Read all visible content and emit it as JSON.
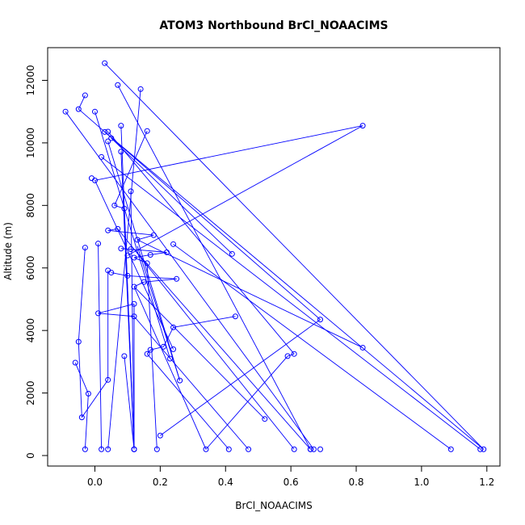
{
  "chart_data": {
    "type": "line",
    "title": "ATOM3 Northbound BrCl_NOAACIMS",
    "xlabel": "BrCl_NOAACIMS",
    "ylabel": "Altitude (m)",
    "xlim": [
      -0.1,
      1.2
    ],
    "ylim": [
      0,
      12600
    ],
    "x_ticks": [
      "0.0",
      "0.2",
      "0.4",
      "0.6",
      "0.8",
      "1.0",
      "1.2"
    ],
    "y_ticks": [
      "0",
      "2000",
      "4000",
      "6000",
      "8000",
      "10000",
      "12000"
    ],
    "grid": false,
    "series_color": "#0000ff",
    "points": [
      {
        "x": 0.03,
        "y": 12550
      },
      {
        "x": 1.19,
        "y": 200
      },
      {
        "x": 0.07,
        "y": 11850
      },
      {
        "x": 0.66,
        "y": 200
      },
      {
        "x": 0.14,
        "y": 11720
      },
      {
        "x": 0.04,
        "y": 200
      },
      {
        "x": -0.03,
        "y": 11520
      },
      {
        "x": -0.05,
        "y": 11080
      },
      {
        "x": 0.69,
        "y": 4350
      },
      {
        "x": -0.09,
        "y": 11000
      },
      {
        "x": 0.23,
        "y": 3100
      },
      {
        "x": 0.0,
        "y": 11000
      },
      {
        "x": 0.67,
        "y": 200
      },
      {
        "x": 0.82,
        "y": 10550
      },
      {
        "x": 0.1,
        "y": 6400
      },
      {
        "x": 0.08,
        "y": 10550
      },
      {
        "x": 0.12,
        "y": 200
      },
      {
        "x": 0.16,
        "y": 10380
      },
      {
        "x": 0.04,
        "y": 10360
      },
      {
        "x": 0.61,
        "y": 3250
      },
      {
        "x": 0.03,
        "y": 10350
      },
      {
        "x": 0.05,
        "y": 10150
      },
      {
        "x": 0.04,
        "y": 10050
      },
      {
        "x": 0.08,
        "y": 9720
      },
      {
        "x": 0.42,
        "y": 6450
      },
      {
        "x": 0.02,
        "y": 9550
      },
      {
        "x": 0.26,
        "y": 2400
      },
      {
        "x": -0.01,
        "y": 8870
      },
      {
        "x": 0.0,
        "y": 8800
      },
      {
        "x": 0.24,
        "y": 3400
      },
      {
        "x": 0.11,
        "y": 8450
      },
      {
        "x": 0.06,
        "y": 8000
      },
      {
        "x": 0.12,
        "y": 200
      },
      {
        "x": 0.09,
        "y": 7900
      },
      {
        "x": 0.07,
        "y": 7250
      },
      {
        "x": 0.04,
        "y": 7200
      },
      {
        "x": 0.18,
        "y": 7050
      },
      {
        "x": 0.13,
        "y": 6900
      },
      {
        "x": 0.01,
        "y": 6780
      },
      {
        "x": 0.24,
        "y": 6760
      },
      {
        "x": -0.03,
        "y": 6650
      },
      {
        "x": -0.05,
        "y": 3640
      },
      {
        "x": 0.08,
        "y": 6620
      },
      {
        "x": 0.11,
        "y": 6600
      },
      {
        "x": 0.22,
        "y": 6500
      },
      {
        "x": 0.17,
        "y": 6420
      },
      {
        "x": 0.12,
        "y": 6330
      },
      {
        "x": 0.16,
        "y": 6150
      },
      {
        "x": 0.04,
        "y": 5920
      },
      {
        "x": 0.05,
        "y": 5850
      },
      {
        "x": 0.1,
        "y": 5750
      },
      {
        "x": 0.25,
        "y": 5650
      },
      {
        "x": 0.15,
        "y": 5550
      },
      {
        "x": 0.12,
        "y": 5400
      },
      {
        "x": 0.12,
        "y": 4850
      },
      {
        "x": 0.01,
        "y": 4550
      },
      {
        "x": 0.12,
        "y": 4450
      },
      {
        "x": 0.43,
        "y": 4450
      },
      {
        "x": 0.24,
        "y": 4100
      },
      {
        "x": 0.82,
        "y": 3450
      },
      {
        "x": 0.21,
        "y": 3480
      },
      {
        "x": 0.17,
        "y": 3380
      },
      {
        "x": 0.16,
        "y": 3250
      },
      {
        "x": 0.59,
        "y": 3180
      },
      {
        "x": 0.09,
        "y": 3180
      },
      {
        "x": -0.06,
        "y": 2970
      },
      {
        "x": 0.04,
        "y": 2420
      },
      {
        "x": -0.02,
        "y": 1980
      },
      {
        "x": -0.04,
        "y": 1220
      },
      {
        "x": 0.52,
        "y": 1170
      },
      {
        "x": 0.2,
        "y": 640
      },
      {
        "x": -0.03,
        "y": 200
      },
      {
        "x": 0.02,
        "y": 200
      },
      {
        "x": 0.19,
        "y": 200
      },
      {
        "x": 0.34,
        "y": 200
      },
      {
        "x": 0.41,
        "y": 200
      },
      {
        "x": 0.47,
        "y": 200
      },
      {
        "x": 1.09,
        "y": 200
      },
      {
        "x": 1.18,
        "y": 200
      },
      {
        "x": 0.66,
        "y": 200
      },
      {
        "x": 0.12,
        "y": 200
      },
      {
        "x": 0.61,
        "y": 200
      },
      {
        "x": 0.69,
        "y": 200
      }
    ],
    "lines": [
      [
        [
          0.03,
          12550
        ],
        [
          1.19,
          200
        ]
      ],
      [
        [
          0.07,
          11850
        ],
        [
          0.66,
          200
        ]
      ],
      [
        [
          0.14,
          11720
        ],
        [
          0.04,
          200
        ]
      ],
      [
        [
          -0.03,
          11520
        ],
        [
          -0.05,
          11080
        ]
      ],
      [
        [
          -0.05,
          11080
        ],
        [
          0.69,
          4350
        ]
      ],
      [
        [
          0.0,
          11000
        ],
        [
          0.23,
          3100
        ]
      ],
      [
        [
          -0.09,
          11000
        ],
        [
          0.67,
          200
        ]
      ],
      [
        [
          0.08,
          10550
        ],
        [
          0.12,
          200
        ]
      ],
      [
        [
          0.82,
          10550
        ],
        [
          0.1,
          6400
        ]
      ],
      [
        [
          0.82,
          10550
        ],
        [
          0.0,
          8800
        ]
      ],
      [
        [
          0.16,
          10380
        ],
        [
          0.06,
          8000
        ]
      ],
      [
        [
          0.04,
          10360
        ],
        [
          0.61,
          3250
        ]
      ],
      [
        [
          0.03,
          10350
        ],
        [
          1.19,
          200
        ]
      ],
      [
        [
          0.05,
          10150
        ],
        [
          0.42,
          6450
        ]
      ],
      [
        [
          0.04,
          10050
        ],
        [
          0.26,
          2400
        ]
      ],
      [
        [
          0.08,
          9720
        ],
        [
          0.12,
          200
        ]
      ],
      [
        [
          0.02,
          9550
        ],
        [
          1.18,
          200
        ]
      ],
      [
        [
          0.0,
          8800
        ],
        [
          0.24,
          3400
        ]
      ],
      [
        [
          0.11,
          8450
        ],
        [
          0.12,
          200
        ]
      ],
      [
        [
          0.06,
          8000
        ],
        [
          0.09,
          7900
        ]
      ],
      [
        [
          0.09,
          7900
        ],
        [
          0.12,
          200
        ]
      ],
      [
        [
          0.07,
          7250
        ],
        [
          0.04,
          7200
        ]
      ],
      [
        [
          0.04,
          7200
        ],
        [
          0.18,
          7050
        ]
      ],
      [
        [
          0.18,
          7050
        ],
        [
          0.13,
          6900
        ]
      ],
      [
        [
          0.13,
          6900
        ],
        [
          0.82,
          3450
        ]
      ],
      [
        [
          0.24,
          6760
        ],
        [
          1.09,
          200
        ]
      ],
      [
        [
          0.01,
          6780
        ],
        [
          0.02,
          200
        ]
      ],
      [
        [
          -0.03,
          6650
        ],
        [
          -0.05,
          3640
        ]
      ],
      [
        [
          -0.05,
          3640
        ],
        [
          -0.04,
          1220
        ]
      ],
      [
        [
          -0.04,
          1220
        ],
        [
          0.04,
          2420
        ]
      ],
      [
        [
          0.04,
          2420
        ],
        [
          0.04,
          5920
        ]
      ],
      [
        [
          0.08,
          6620
        ],
        [
          0.11,
          6600
        ]
      ],
      [
        [
          0.11,
          6600
        ],
        [
          0.22,
          6500
        ]
      ],
      [
        [
          0.22,
          6500
        ],
        [
          0.17,
          6420
        ]
      ],
      [
        [
          0.17,
          6420
        ],
        [
          0.12,
          6330
        ]
      ],
      [
        [
          0.12,
          6330
        ],
        [
          0.16,
          6150
        ]
      ],
      [
        [
          0.16,
          6150
        ],
        [
          0.19,
          200
        ]
      ],
      [
        [
          0.05,
          5850
        ],
        [
          0.1,
          5750
        ]
      ],
      [
        [
          0.1,
          5750
        ],
        [
          0.25,
          5650
        ]
      ],
      [
        [
          0.25,
          5650
        ],
        [
          0.15,
          5550
        ]
      ],
      [
        [
          0.15,
          5550
        ],
        [
          0.12,
          5400
        ]
      ],
      [
        [
          0.12,
          5400
        ],
        [
          0.34,
          200
        ]
      ],
      [
        [
          0.12,
          4850
        ],
        [
          0.01,
          4550
        ]
      ],
      [
        [
          0.01,
          4550
        ],
        [
          0.12,
          4450
        ]
      ],
      [
        [
          0.12,
          4450
        ],
        [
          0.47,
          200
        ]
      ],
      [
        [
          0.43,
          4450
        ],
        [
          0.24,
          4100
        ]
      ],
      [
        [
          0.24,
          4100
        ],
        [
          0.21,
          3480
        ]
      ],
      [
        [
          0.21,
          3480
        ],
        [
          0.17,
          3380
        ]
      ],
      [
        [
          0.17,
          3380
        ],
        [
          0.16,
          3250
        ]
      ],
      [
        [
          0.16,
          3250
        ],
        [
          0.41,
          200
        ]
      ],
      [
        [
          0.59,
          3180
        ],
        [
          0.61,
          3250
        ]
      ],
      [
        [
          0.59,
          3180
        ],
        [
          0.34,
          200
        ]
      ],
      [
        [
          0.09,
          3180
        ],
        [
          0.12,
          200
        ]
      ],
      [
        [
          -0.06,
          2970
        ],
        [
          -0.02,
          1980
        ]
      ],
      [
        [
          -0.02,
          1980
        ],
        [
          -0.03,
          200
        ]
      ],
      [
        [
          0.52,
          1170
        ],
        [
          0.12,
          5400
        ]
      ],
      [
        [
          0.2,
          640
        ],
        [
          0.69,
          4350
        ]
      ],
      [
        [
          0.12,
          6600
        ],
        [
          0.66,
          200
        ]
      ],
      [
        [
          0.07,
          7250
        ],
        [
          0.61,
          200
        ]
      ],
      [
        [
          0.13,
          6700
        ],
        [
          0.26,
          2400
        ]
      ],
      [
        [
          0.12,
          4850
        ],
        [
          0.12,
          200
        ]
      ]
    ]
  }
}
